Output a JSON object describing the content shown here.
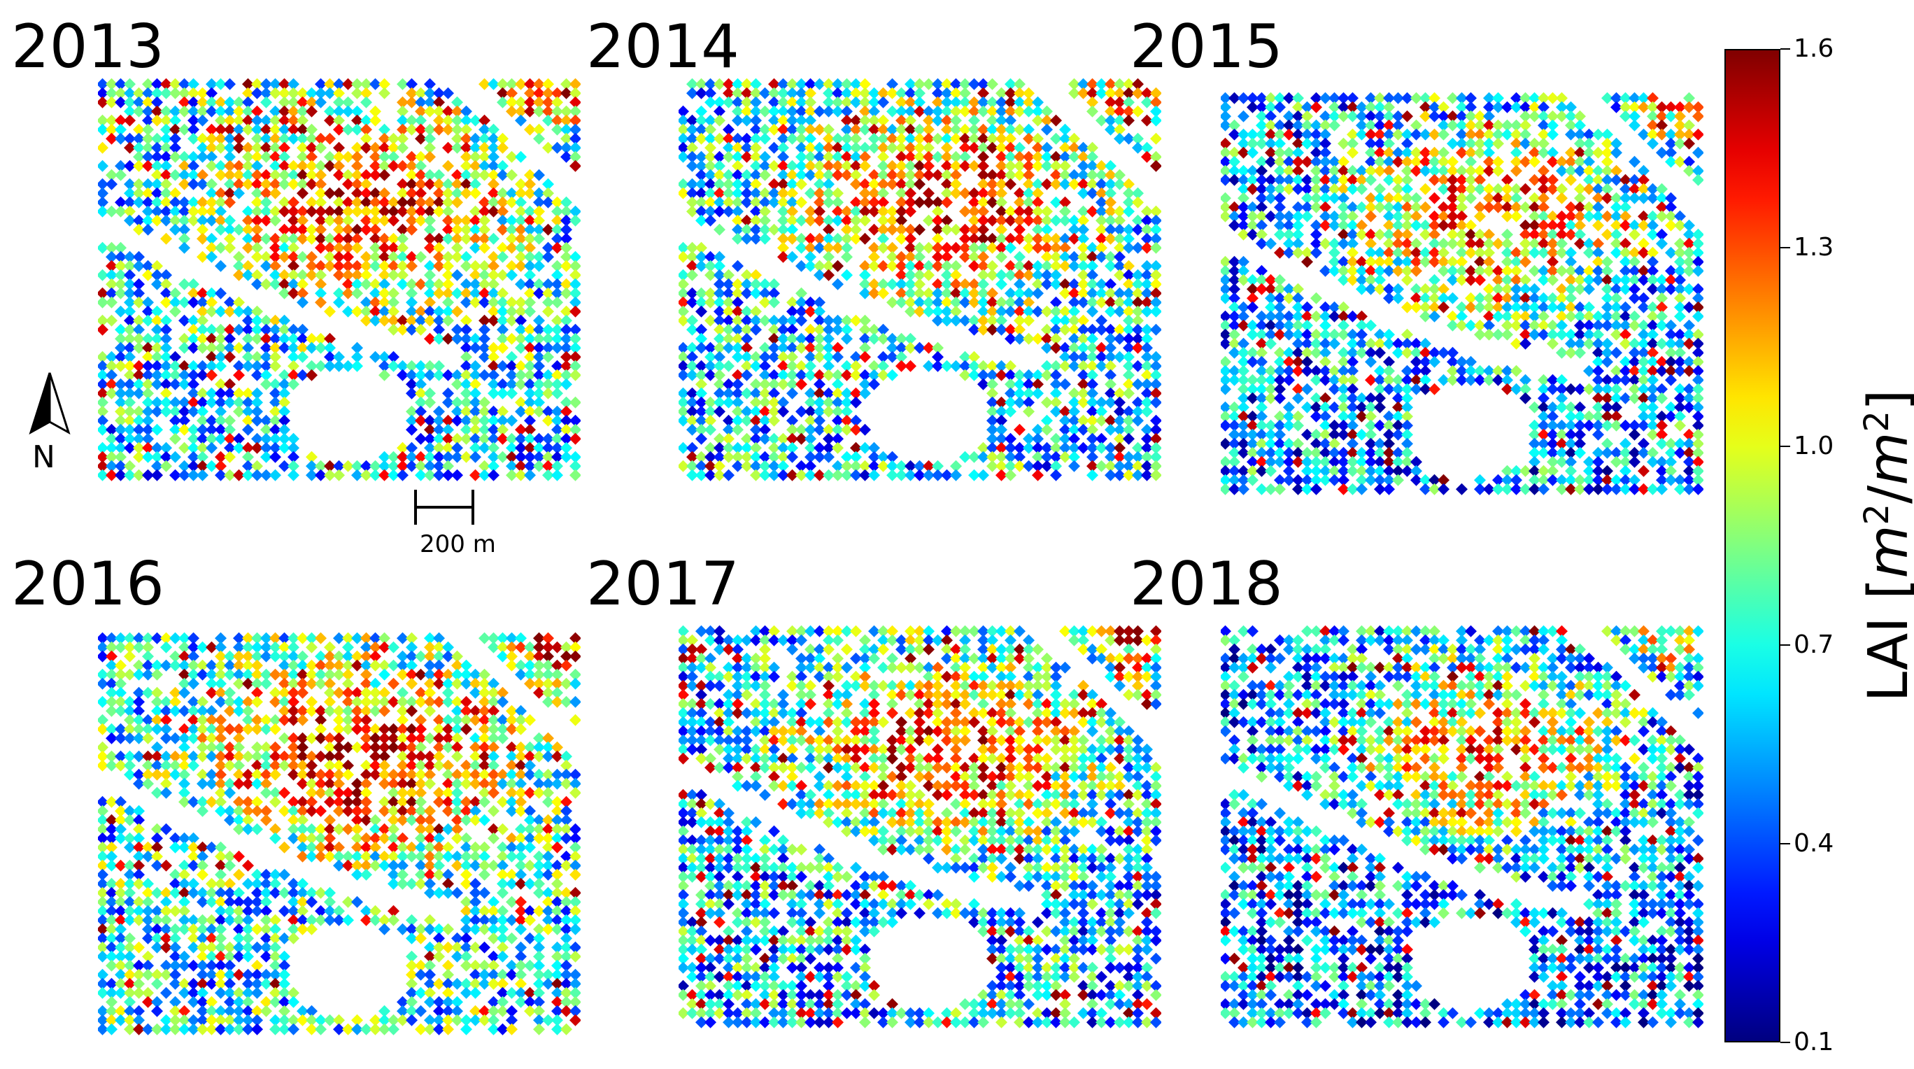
{
  "panels": [
    {
      "year": "2013"
    },
    {
      "year": "2014"
    },
    {
      "year": "2015"
    },
    {
      "year": "2016"
    },
    {
      "year": "2017"
    },
    {
      "year": "2018"
    }
  ],
  "north_arrow": {
    "label": "N"
  },
  "scale_bar": {
    "label": "200 m"
  },
  "colorbar": {
    "label": "LAI [m²/m²]",
    "colormap": "jet",
    "ticks": [
      "1.6",
      "1.3",
      "1.0",
      "0.7",
      "0.4",
      "0.1"
    ],
    "range": [
      0.1,
      1.6
    ]
  },
  "chart_data": {
    "type": "heatmap",
    "title": "",
    "panels": [
      "2013",
      "2014",
      "2015",
      "2016",
      "2017",
      "2018"
    ],
    "value_label": "LAI [m²/m²]",
    "vmin": 0.1,
    "vmax": 1.6,
    "colormap": "jet",
    "colorbar_ticks": [
      1.6,
      1.3,
      1.0,
      0.7,
      0.4,
      0.1
    ]
  }
}
